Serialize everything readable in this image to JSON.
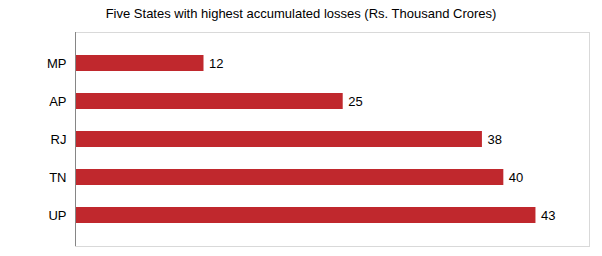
{
  "chart_data": {
    "type": "bar",
    "orientation": "horizontal",
    "title": "Five States with highest accumulated losses (Rs. Thousand Crores)",
    "categories": [
      "MP",
      "AP",
      "RJ",
      "TN",
      "UP"
    ],
    "values": [
      12,
      25,
      38,
      40,
      43
    ],
    "color": "#c0282d",
    "xlim": [
      0,
      48
    ],
    "grid": false,
    "data_labels": true,
    "tick_labels": "y"
  }
}
